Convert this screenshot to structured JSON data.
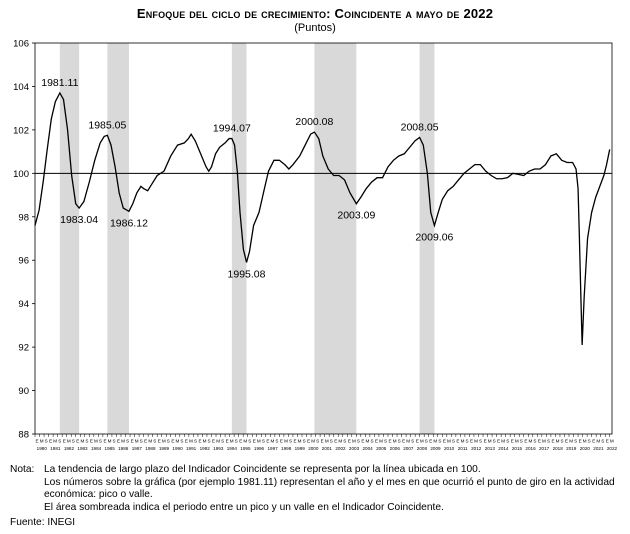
{
  "title": "Enfoque del ciclo de crecimiento: Coincidente a mayo de 2022",
  "subtitle": "(Puntos)",
  "chart_data": {
    "type": "line",
    "ylim": [
      88,
      106
    ],
    "yticks": [
      88,
      90,
      92,
      94,
      96,
      98,
      100,
      102,
      104,
      106
    ],
    "xlim": [
      1980.0,
      2022.5
    ],
    "year_labels": [
      "1980",
      "1981",
      "1982",
      "1983",
      "1984",
      "1985",
      "1986",
      "1987",
      "1988",
      "1989",
      "1990",
      "1991",
      "1992",
      "1993",
      "1994",
      "1995",
      "1996",
      "1997",
      "1998",
      "1999",
      "2000",
      "2001",
      "2002",
      "2003",
      "2004",
      "2005",
      "2006",
      "2007",
      "2008",
      "2009",
      "2010",
      "2011",
      "2012",
      "2013",
      "2014",
      "2015",
      "2016",
      "2017",
      "2018",
      "2019",
      "2020",
      "2021",
      "2022"
    ],
    "month_tick_labels": [
      "E",
      "M",
      "S"
    ],
    "reference_line": 100,
    "grid": false,
    "shaded_periods": [
      {
        "start": 1981.83,
        "end": 1983.25
      },
      {
        "start": 1985.33,
        "end": 1986.92
      },
      {
        "start": 1994.5,
        "end": 1995.58
      },
      {
        "start": 2000.58,
        "end": 2003.67
      },
      {
        "start": 2008.33,
        "end": 2009.42
      }
    ],
    "series": [
      {
        "color": "#000000",
        "points": [
          [
            1980.0,
            97.6
          ],
          [
            1980.3,
            98.3
          ],
          [
            1980.6,
            99.6
          ],
          [
            1980.9,
            101.1
          ],
          [
            1981.2,
            102.5
          ],
          [
            1981.5,
            103.3
          ],
          [
            1981.83,
            103.7
          ],
          [
            1982.1,
            103.4
          ],
          [
            1982.4,
            102.0
          ],
          [
            1982.7,
            99.9
          ],
          [
            1983.0,
            98.6
          ],
          [
            1983.25,
            98.4
          ],
          [
            1983.6,
            98.7
          ],
          [
            1984.0,
            99.6
          ],
          [
            1984.4,
            100.6
          ],
          [
            1984.8,
            101.4
          ],
          [
            1985.1,
            101.7
          ],
          [
            1985.33,
            101.75
          ],
          [
            1985.6,
            101.3
          ],
          [
            1985.9,
            100.3
          ],
          [
            1986.2,
            99.1
          ],
          [
            1986.5,
            98.4
          ],
          [
            1986.92,
            98.25
          ],
          [
            1987.2,
            98.6
          ],
          [
            1987.5,
            99.1
          ],
          [
            1987.8,
            99.4
          ],
          [
            1988.0,
            99.3
          ],
          [
            1988.3,
            99.2
          ],
          [
            1988.6,
            99.5
          ],
          [
            1989.0,
            99.9
          ],
          [
            1989.5,
            100.1
          ],
          [
            1990.0,
            100.8
          ],
          [
            1990.5,
            101.3
          ],
          [
            1991.0,
            101.4
          ],
          [
            1991.3,
            101.6
          ],
          [
            1991.5,
            101.8
          ],
          [
            1991.8,
            101.5
          ],
          [
            1992.2,
            100.9
          ],
          [
            1992.6,
            100.3
          ],
          [
            1992.8,
            100.1
          ],
          [
            1993.0,
            100.3
          ],
          [
            1993.3,
            100.9
          ],
          [
            1993.6,
            101.2
          ],
          [
            1994.0,
            101.4
          ],
          [
            1994.3,
            101.6
          ],
          [
            1994.5,
            101.6
          ],
          [
            1994.7,
            101.3
          ],
          [
            1994.9,
            100.1
          ],
          [
            1995.1,
            98.2
          ],
          [
            1995.35,
            96.5
          ],
          [
            1995.58,
            95.9
          ],
          [
            1995.8,
            96.4
          ],
          [
            1996.1,
            97.6
          ],
          [
            1996.5,
            98.2
          ],
          [
            1996.9,
            99.3
          ],
          [
            1997.2,
            100.1
          ],
          [
            1997.6,
            100.6
          ],
          [
            1998.0,
            100.6
          ],
          [
            1998.4,
            100.4
          ],
          [
            1998.7,
            100.2
          ],
          [
            1999.0,
            100.4
          ],
          [
            1999.5,
            100.8
          ],
          [
            1999.9,
            101.3
          ],
          [
            2000.3,
            101.8
          ],
          [
            2000.58,
            101.9
          ],
          [
            2000.9,
            101.6
          ],
          [
            2001.2,
            100.8
          ],
          [
            2001.6,
            100.2
          ],
          [
            2002.0,
            99.9
          ],
          [
            2002.4,
            99.9
          ],
          [
            2002.8,
            99.7
          ],
          [
            2003.2,
            99.1
          ],
          [
            2003.67,
            98.6
          ],
          [
            2004.0,
            98.9
          ],
          [
            2004.4,
            99.3
          ],
          [
            2004.8,
            99.6
          ],
          [
            2005.2,
            99.8
          ],
          [
            2005.6,
            99.8
          ],
          [
            2006.0,
            100.3
          ],
          [
            2006.4,
            100.6
          ],
          [
            2006.8,
            100.8
          ],
          [
            2007.2,
            100.9
          ],
          [
            2007.6,
            101.2
          ],
          [
            2008.0,
            101.5
          ],
          [
            2008.33,
            101.65
          ],
          [
            2008.6,
            101.3
          ],
          [
            2008.9,
            100.0
          ],
          [
            2009.15,
            98.2
          ],
          [
            2009.42,
            97.6
          ],
          [
            2009.7,
            98.2
          ],
          [
            2010.0,
            98.8
          ],
          [
            2010.4,
            99.2
          ],
          [
            2010.8,
            99.4
          ],
          [
            2011.2,
            99.7
          ],
          [
            2011.6,
            100.0
          ],
          [
            2012.0,
            100.2
          ],
          [
            2012.4,
            100.4
          ],
          [
            2012.8,
            100.4
          ],
          [
            2013.2,
            100.1
          ],
          [
            2013.6,
            99.9
          ],
          [
            2014.0,
            99.75
          ],
          [
            2014.4,
            99.75
          ],
          [
            2014.8,
            99.8
          ],
          [
            2015.2,
            100.0
          ],
          [
            2015.6,
            99.95
          ],
          [
            2016.0,
            99.9
          ],
          [
            2016.4,
            100.1
          ],
          [
            2016.8,
            100.2
          ],
          [
            2017.2,
            100.2
          ],
          [
            2017.6,
            100.4
          ],
          [
            2018.0,
            100.8
          ],
          [
            2018.4,
            100.9
          ],
          [
            2018.8,
            100.6
          ],
          [
            2019.2,
            100.5
          ],
          [
            2019.6,
            100.5
          ],
          [
            2019.85,
            100.2
          ],
          [
            2020.0,
            99.3
          ],
          [
            2020.1,
            97.0
          ],
          [
            2020.2,
            94.5
          ],
          [
            2020.3,
            92.1
          ],
          [
            2020.45,
            94.3
          ],
          [
            2020.7,
            97.0
          ],
          [
            2021.0,
            98.2
          ],
          [
            2021.3,
            98.9
          ],
          [
            2021.6,
            99.4
          ],
          [
            2021.9,
            99.9
          ],
          [
            2022.1,
            100.4
          ],
          [
            2022.33,
            101.1
          ]
        ]
      }
    ],
    "annotations": [
      {
        "text": "1981.11",
        "x": 1981.83,
        "y": 103.7,
        "position": "above"
      },
      {
        "text": "1983.04",
        "x": 1983.25,
        "y": 98.4,
        "position": "below"
      },
      {
        "text": "1985.05",
        "x": 1985.33,
        "y": 101.75,
        "position": "above"
      },
      {
        "text": "1986.12",
        "x": 1986.92,
        "y": 98.25,
        "position": "below"
      },
      {
        "text": "1994.07",
        "x": 1994.5,
        "y": 101.6,
        "position": "above"
      },
      {
        "text": "1995.08",
        "x": 1995.58,
        "y": 95.9,
        "position": "below"
      },
      {
        "text": "2000.08",
        "x": 2000.58,
        "y": 101.9,
        "position": "above"
      },
      {
        "text": "2003.09",
        "x": 2003.67,
        "y": 98.6,
        "position": "below"
      },
      {
        "text": "2008.05",
        "x": 2008.33,
        "y": 101.65,
        "position": "above"
      },
      {
        "text": "2009.06",
        "x": 2009.42,
        "y": 97.6,
        "position": "below"
      }
    ]
  },
  "notes": {
    "label": "Nota:",
    "lines": [
      "La tendencia de largo plazo del Indicador Coincidente se representa por la línea ubicada en 100.",
      "Los números sobre la gráfica (por ejemplo 1981.11) representan el año y el mes en que ocurrió el punto de giro en la actividad económica: pico o valle.",
      "El área sombreada indica el periodo entre un pico y un valle en el Indicador Coincidente."
    ]
  },
  "source": "Fuente: INEGI"
}
